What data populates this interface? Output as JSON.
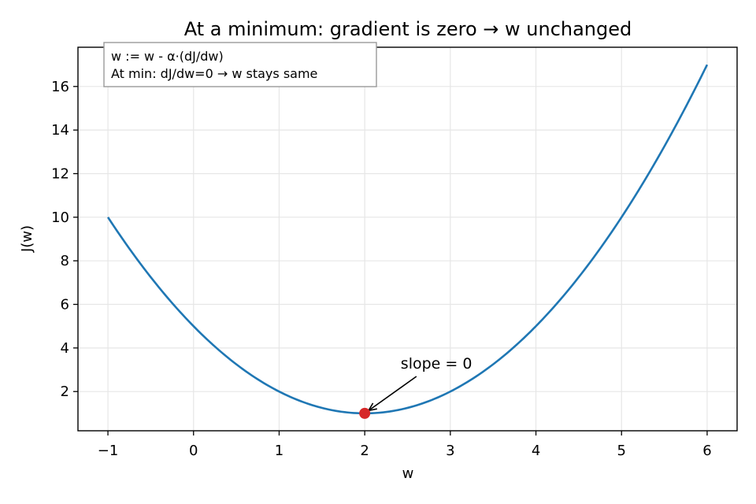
{
  "chart_data": {
    "type": "line",
    "title": "At a minimum: gradient is zero → w unchanged",
    "xlabel": "w",
    "ylabel": "J(w)",
    "xlim": [
      -1.35,
      6.35
    ],
    "ylim": [
      0.2,
      17.8
    ],
    "x_ticks": [
      -1,
      0,
      1,
      2,
      3,
      4,
      5,
      6
    ],
    "x_tick_labels": [
      "−1",
      "0",
      "1",
      "2",
      "3",
      "4",
      "5",
      "6"
    ],
    "y_ticks": [
      2,
      4,
      6,
      8,
      10,
      12,
      14,
      16
    ],
    "y_tick_labels": [
      "2",
      "4",
      "6",
      "8",
      "10",
      "12",
      "14",
      "16"
    ],
    "grid": true,
    "series": [
      {
        "function": "(w-2)^2+1",
        "x_range": [
          -1,
          6
        ],
        "color": "#1f77b4"
      }
    ],
    "highlight_point": {
      "x": 2,
      "y": 1,
      "color": "#d62728"
    },
    "annotation": {
      "text": "slope = 0",
      "target": {
        "x": 2,
        "y": 1
      },
      "text_at": {
        "x": 2.42,
        "y": 2.55
      }
    },
    "info_box": {
      "lines": [
        "w := w - α·(dJ/dw)",
        "At min: dJ/dw=0 → w stays same"
      ],
      "placement": "top-left"
    }
  }
}
